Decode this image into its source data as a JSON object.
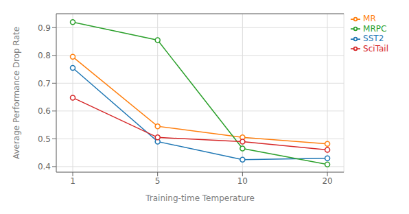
{
  "chart_data": {
    "type": "line",
    "categories": [
      "1",
      "5",
      "10",
      "20"
    ],
    "series": [
      {
        "name": "SST2",
        "color": "#1f77b4",
        "values": [
          0.755,
          0.49,
          0.425,
          0.43
        ]
      },
      {
        "name": "MR",
        "color": "#ff7f0e",
        "values": [
          0.795,
          0.545,
          0.505,
          0.482
        ]
      },
      {
        "name": "MRPC",
        "color": "#2ca02c",
        "values": [
          0.92,
          0.855,
          0.465,
          0.408
        ]
      },
      {
        "name": "SciTail",
        "color": "#d62728",
        "values": [
          0.648,
          0.505,
          0.49,
          0.46
        ]
      }
    ],
    "xlabel": "Training-time Temperature",
    "ylabel": "Average Performance Drop Rate",
    "ylim": [
      0.38,
      0.95
    ],
    "yticks": [
      0.4,
      0.5,
      0.6,
      0.7,
      0.8,
      0.9
    ],
    "marker": "circle",
    "grid": true,
    "legend": "upper right"
  }
}
